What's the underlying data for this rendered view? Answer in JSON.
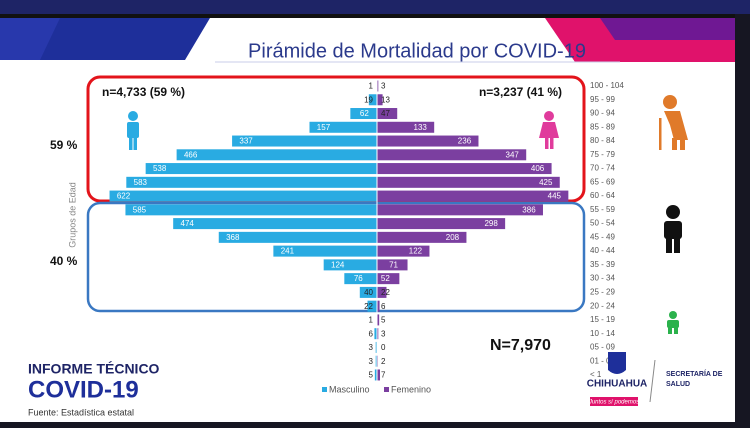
{
  "chart_data": {
    "type": "pyramid",
    "title": "Pirámide de Mortalidad por COVID-19",
    "y_label": "Grupos de Edad",
    "categories": [
      "100 - 104",
      "95 - 99",
      "90 - 94",
      "85 - 89",
      "80 - 84",
      "75 - 79",
      "70 - 74",
      "65 - 69",
      "60 - 64",
      "55 - 59",
      "50 - 54",
      "45 - 49",
      "40 - 44",
      "35 - 39",
      "30 - 34",
      "25 - 29",
      "20 - 24",
      "15 - 19",
      "10 - 14",
      "05 - 09",
      "01 - 04",
      "< 1"
    ],
    "series": [
      {
        "name": "Masculino",
        "color": "#29abe2",
        "values": [
          1,
          19,
          62,
          157,
          337,
          466,
          538,
          583,
          622,
          585,
          474,
          368,
          241,
          124,
          76,
          40,
          22,
          1,
          6,
          3,
          3,
          5
        ]
      },
      {
        "name": "Femenino",
        "color": "#7b3fa0",
        "values": [
          3,
          13,
          47,
          133,
          236,
          347,
          406,
          425,
          445,
          386,
          298,
          208,
          122,
          71,
          52,
          22,
          6,
          5,
          3,
          0,
          2,
          7
        ]
      }
    ],
    "annotations": {
      "male_total": "n=4,733 (59 %)",
      "female_total": "n=3,237 (41 %)",
      "total": "N=7,970",
      "older_share": "59 %",
      "younger_share": "40 %"
    }
  },
  "footer": {
    "report_title": "INFORME TÉCNICO",
    "report_subtitle": "COVID-19",
    "source": "Fuente: Estadística estatal",
    "logo": "CHIHUAHUA",
    "logo_tagline": "Juntos sí podemos",
    "department": [
      "SECRETARÍA DE",
      "SALUD"
    ]
  }
}
